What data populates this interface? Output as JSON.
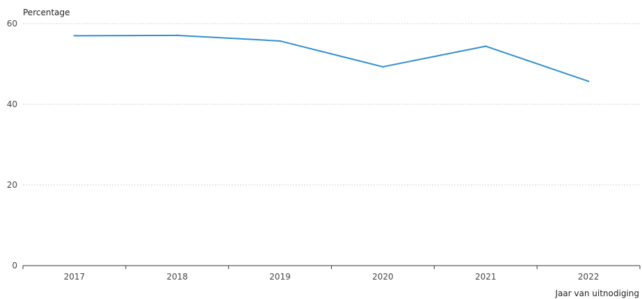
{
  "chart_data": {
    "type": "line",
    "title": "",
    "ylabel": "Percentage",
    "xlabel": "Jaar van uitnodiging",
    "categories": [
      "2017",
      "2018",
      "2019",
      "2020",
      "2021",
      "2022"
    ],
    "series": [
      {
        "values": [
          57.0,
          57.1,
          55.7,
          49.3,
          54.4,
          45.7
        ]
      }
    ],
    "ylim": [
      0,
      60
    ],
    "yticks": [
      "0",
      "20",
      "40",
      "60"
    ],
    "grid": true,
    "legend": "none",
    "colors": {
      "line": "#2f8fd0",
      "grid": "#d0d0d0",
      "axis": "#333333"
    }
  }
}
